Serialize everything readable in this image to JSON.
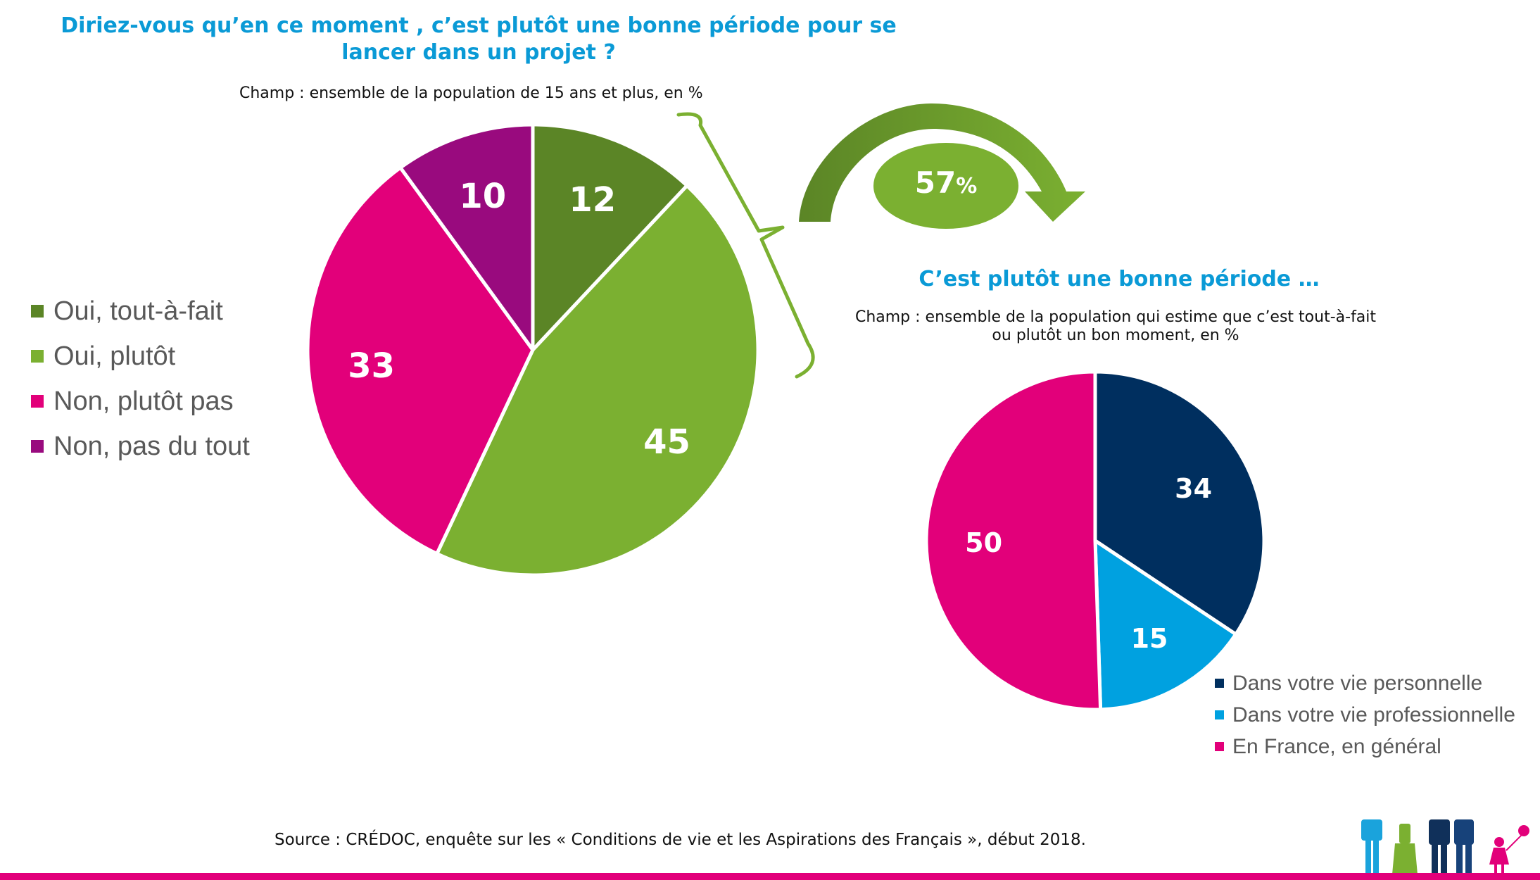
{
  "chart1": {
    "title": "Diriez-vous qu’en ce moment , c’est plutôt une bonne période pour se lancer dans un projet ?",
    "subtitle": "Champ : ensemble de la population de 15 ans et plus, en %"
  },
  "chart2": {
    "title": "C’est plutôt une bonne période …",
    "subtitle": "Champ : ensemble de la population qui estime que c’est tout-à-fait ou plutôt un bon moment, en %"
  },
  "callout": {
    "value": "57",
    "unit": "%",
    "color": "#7bb031"
  },
  "source": "Source : CRÉDOC, enquête sur les « Conditions de vie et les Aspirations des Français », début 2018.",
  "colors": {
    "title": "#0a9ad6",
    "bottom_bar": "#e2007a"
  },
  "chart_data": [
    {
      "type": "pie",
      "title": "Diriez-vous qu’en ce moment , c’est plutôt une bonne période pour se lancer dans un projet ?",
      "categories": [
        "Oui, tout-à-fait",
        "Oui, plutôt",
        "Non, plutôt pas",
        "Non, pas du tout"
      ],
      "values": [
        12,
        45,
        33,
        10
      ],
      "colors": [
        "#5b8526",
        "#7bb031",
        "#e2007a",
        "#990a7e"
      ],
      "legend": "left"
    },
    {
      "type": "pie",
      "title": "C’est plutôt une bonne période …",
      "categories": [
        "Dans votre vie personnelle",
        "Dans votre vie professionnelle",
        "En France, en général"
      ],
      "values": [
        34,
        15,
        50
      ],
      "colors": [
        "#002f5f",
        "#00a1e0",
        "#e2007a"
      ],
      "legend": "bottom-right"
    }
  ]
}
